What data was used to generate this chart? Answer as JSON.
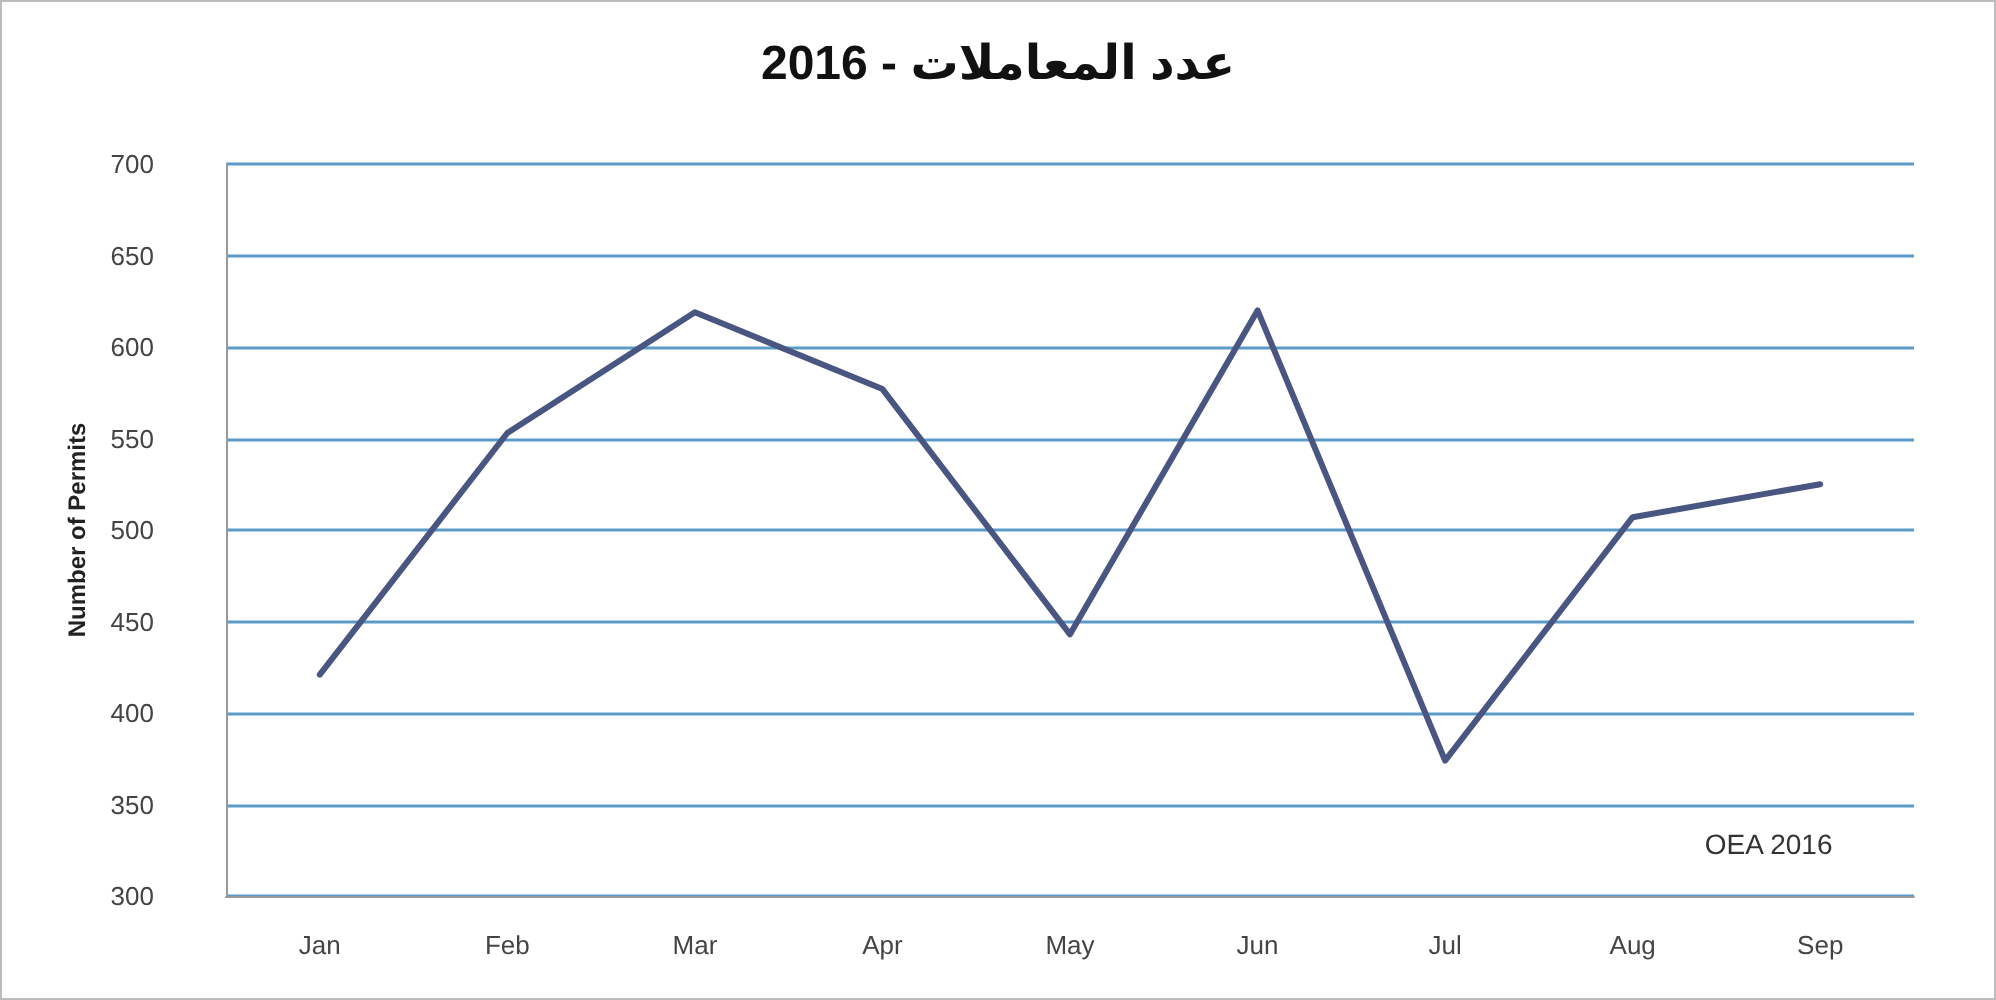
{
  "chart_data": {
    "type": "line",
    "title": "عدد المعاملات - 2016",
    "ylabel": "Number of Permits",
    "categories": [
      "Jan",
      "Feb",
      "Mar",
      "Apr",
      "May",
      "Jun",
      "Jul",
      "Aug",
      "Sep"
    ],
    "series": [
      {
        "color": "#4a5682",
        "values": [
          421,
          553,
          619,
          577,
          443,
          620,
          374,
          507,
          525
        ]
      }
    ],
    "ylim": [
      300,
      700
    ],
    "yticks": [
      300,
      350,
      400,
      450,
      500,
      550,
      600,
      650,
      700
    ],
    "grid": "y",
    "marker": "none",
    "line_style": "solid",
    "annotations": [
      "OEA 2016"
    ]
  }
}
